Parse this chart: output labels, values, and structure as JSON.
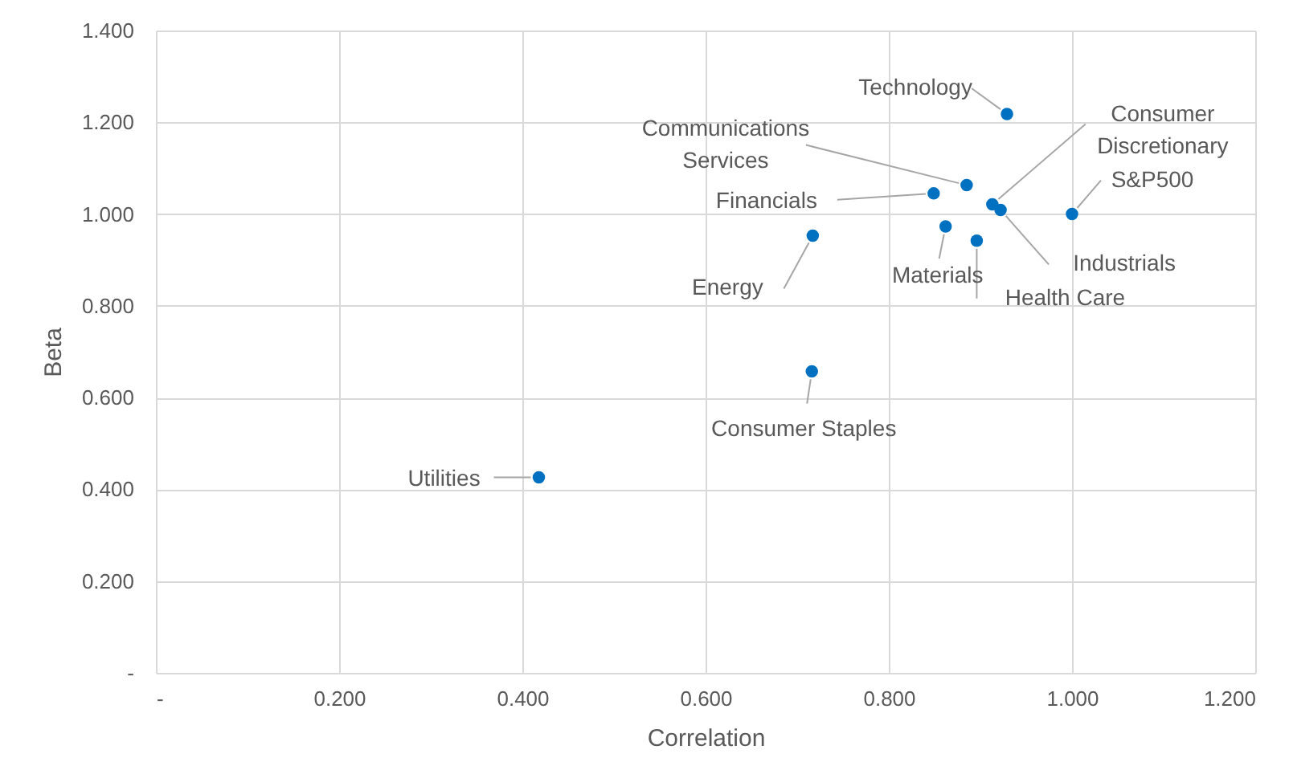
{
  "chart_data": {
    "type": "scatter",
    "xlabel": "Correlation",
    "ylabel": "Beta",
    "x": [
      0.929,
      0.885,
      0.913,
      0.922,
      1.0,
      0.849,
      0.717,
      0.862,
      0.896,
      0.716,
      0.418
    ],
    "series": [
      {
        "color": "#0070c0",
        "values": [
          1.218,
          1.063,
          1.021,
          1.009,
          1.0,
          1.045,
          0.953,
          0.973,
          0.942,
          0.657,
          0.426
        ]
      }
    ],
    "xlim": [
      0,
      1.2
    ],
    "xticks": [
      {
        "value": 0,
        "label": "-"
      },
      {
        "value": 0.2,
        "label": "0.200"
      },
      {
        "value": 0.4,
        "label": "0.400"
      },
      {
        "value": 0.6,
        "label": "0.600"
      },
      {
        "value": 0.8,
        "label": "0.800"
      },
      {
        "value": 1.0,
        "label": "1.000"
      },
      {
        "value": 1.2,
        "label": "1.200"
      }
    ],
    "ylim": [
      0,
      1.4
    ],
    "yticks": [
      {
        "value": 0,
        "label": "-"
      },
      {
        "value": 0.2,
        "label": "0.200"
      },
      {
        "value": 0.4,
        "label": "0.400"
      },
      {
        "value": 0.6,
        "label": "0.600"
      },
      {
        "value": 0.8,
        "label": "0.800"
      },
      {
        "value": 1.0,
        "label": "1.000"
      },
      {
        "value": 1.2,
        "label": "1.200"
      },
      {
        "value": 1.4,
        "label": "1.400"
      }
    ],
    "grid": true,
    "marker": "circle",
    "annotations": [
      {
        "text": "Technology",
        "x": 0.929,
        "y": 1.218
      },
      {
        "text": "Communications\nServices",
        "x": 0.885,
        "y": 1.063
      },
      {
        "text": "Consumer\nDiscretionary",
        "x": 0.913,
        "y": 1.021
      },
      {
        "text": "Industrials",
        "x": 0.922,
        "y": 1.009
      },
      {
        "text": "S&P500",
        "x": 1.0,
        "y": 1.0
      },
      {
        "text": "Financials",
        "x": 0.849,
        "y": 1.045
      },
      {
        "text": "Energy",
        "x": 0.717,
        "y": 0.953
      },
      {
        "text": "Materials",
        "x": 0.862,
        "y": 0.973
      },
      {
        "text": "Health Care",
        "x": 0.896,
        "y": 0.942
      },
      {
        "text": "Consumer Staples",
        "x": 0.716,
        "y": 0.657
      },
      {
        "text": "Utilities",
        "x": 0.418,
        "y": 0.426
      }
    ]
  }
}
